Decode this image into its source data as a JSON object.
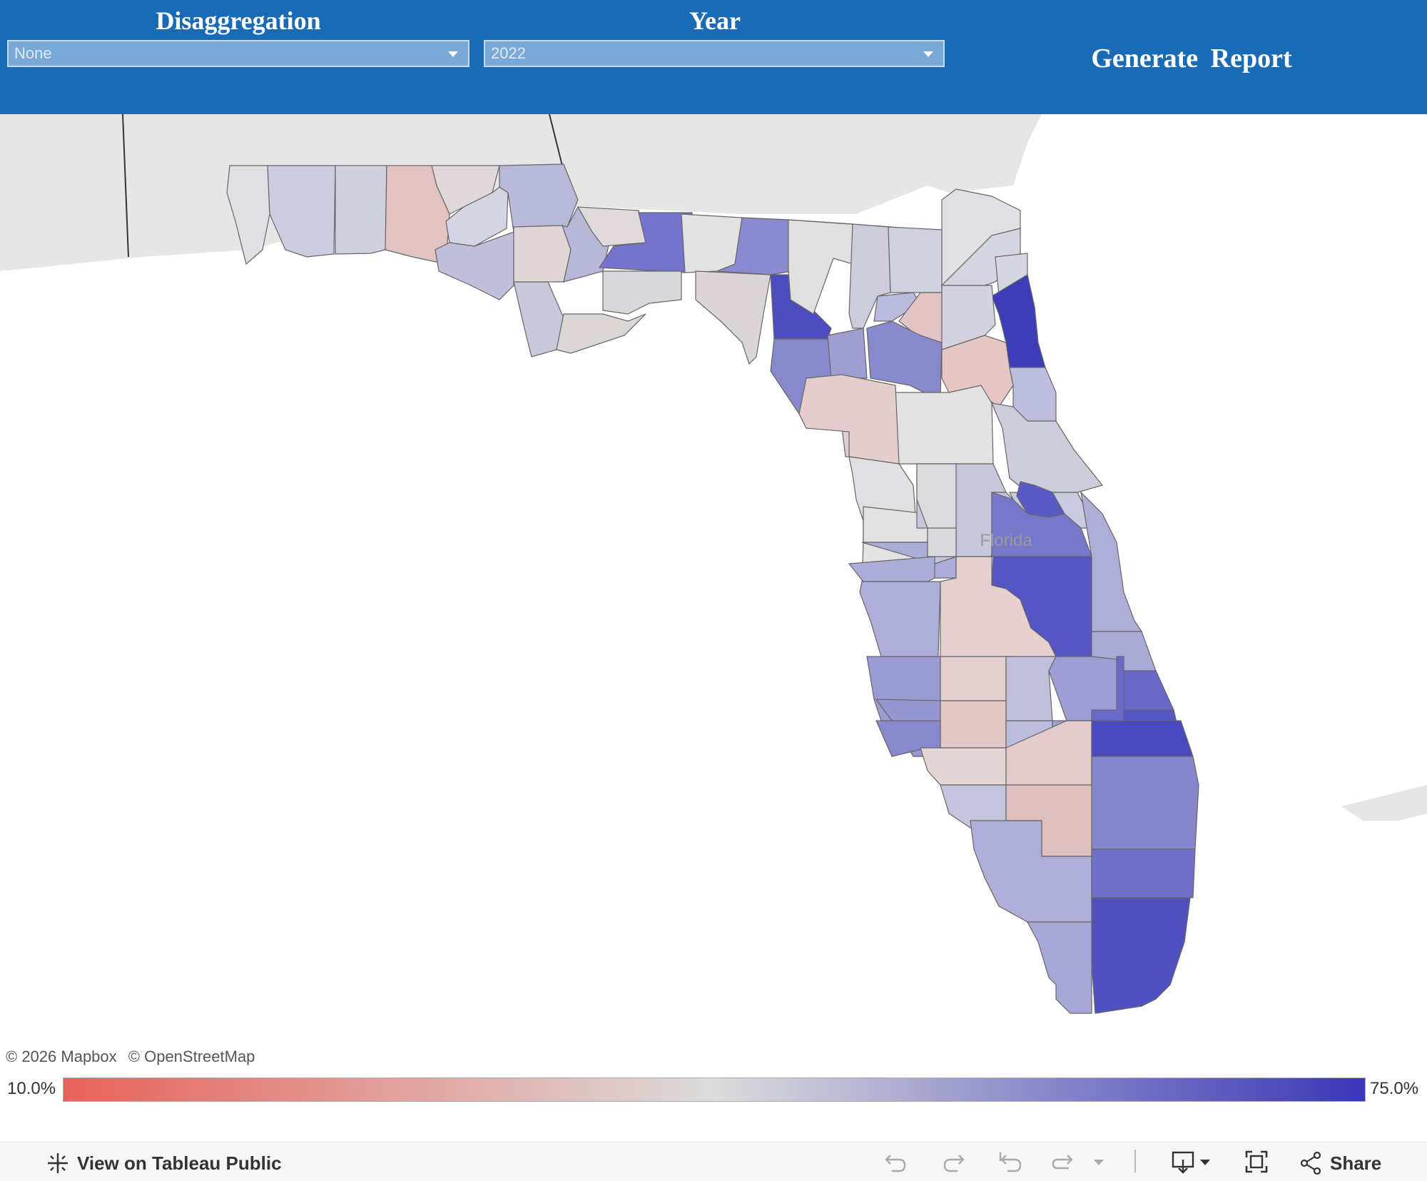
{
  "header": {
    "disaggregation_title": "Disaggregation",
    "disaggregation_value": "None",
    "year_title": "Year",
    "year_value": "2022",
    "generate_report_label": "Generate  Report"
  },
  "map": {
    "state_label": "Florida",
    "attribution": [
      "© 2026 Mapbox",
      "© OpenStreetMap"
    ],
    "color_scale": {
      "low_color": "#e8625a",
      "mid_color": "#dcdcdc",
      "high_color": "#3a36b8"
    }
  },
  "legend": {
    "min_label": "10.0%",
    "max_label": "75.0%"
  },
  "footer": {
    "view_on_label": "View on Tableau Public",
    "share_label": "Share",
    "icons": [
      "undo-icon",
      "redo-icon",
      "revert-icon",
      "refresh-icon",
      "download-icon",
      "fullscreen-icon",
      "share-icon"
    ]
  }
}
